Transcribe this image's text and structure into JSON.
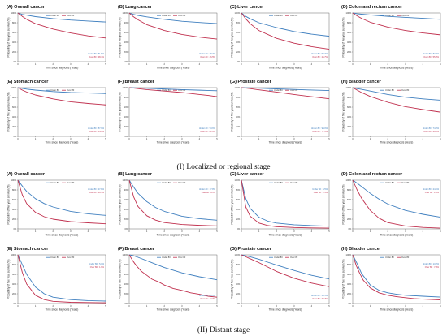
{
  "colors": {
    "under": "#3f7fbf",
    "over": "#c0304e"
  },
  "axis": {
    "xlabel": "Time since diagnosis (Years)",
    "ylabel": "Probability of five year survival (%)",
    "xticks": [
      "0",
      "1",
      "2",
      "3",
      "4",
      "5"
    ],
    "yticks": [
      "0%",
      "20%",
      "40%",
      "60%",
      "80%",
      "100%"
    ]
  },
  "legend": {
    "under": "Under 80",
    "over": "Over 80"
  },
  "captions": [
    "(I) Localized or regional stage",
    "(II) Distant stage"
  ],
  "chart_data": [
    {
      "type": "line",
      "section": "I",
      "title": "(A) Overall cancer",
      "xlabel": "Time since diagnosis (Years)",
      "ylabel": "Probability of five year survival (%)",
      "xlim": [
        0,
        5
      ],
      "ylim": [
        0,
        100
      ],
      "annotations": [
        "Under 80 : 81.5%",
        "Over 80 : 48.7%"
      ],
      "series": [
        {
          "name": "Under 80",
          "x": [
            0,
            0.25,
            0.5,
            1,
            2,
            3,
            4,
            5
          ],
          "values": [
            100,
            97,
            95.5,
            92.5,
            88.5,
            85.5,
            83.5,
            81.5
          ]
        },
        {
          "name": "Over 80",
          "x": [
            0,
            0.25,
            0.5,
            1,
            2,
            3,
            4,
            5
          ],
          "values": [
            100,
            93,
            87,
            78,
            67,
            59,
            53,
            48.7
          ]
        }
      ]
    },
    {
      "type": "line",
      "section": "I",
      "title": "(B) Lung cancer",
      "xlabel": "Time since diagnosis (Years)",
      "ylabel": "Probability of five year survival (%)",
      "xlim": [
        0,
        5
      ],
      "ylim": [
        0,
        100
      ],
      "annotations": [
        "Under 80 : 78.3%",
        "Over 80 : 46.5%"
      ],
      "series": [
        {
          "name": "Under 80",
          "x": [
            0,
            0.25,
            0.5,
            1,
            2,
            3,
            4,
            5
          ],
          "values": [
            100,
            97,
            95,
            92,
            87,
            83,
            80.5,
            78.3
          ]
        },
        {
          "name": "Over 80",
          "x": [
            0,
            0.25,
            0.5,
            1,
            2,
            3,
            4,
            5
          ],
          "values": [
            100,
            92,
            86,
            76,
            64,
            56,
            50.5,
            46.5
          ]
        }
      ]
    },
    {
      "type": "line",
      "section": "I",
      "title": "(C) Liver cancer",
      "xlabel": "Time since diagnosis (Years)",
      "ylabel": "Probability of five year survival (%)",
      "xlim": [
        0,
        5
      ],
      "ylim": [
        0,
        100
      ],
      "annotations": [
        "Under 80 : 52.3%",
        "Over 80 : 25.7%"
      ],
      "series": [
        {
          "name": "Under 80",
          "x": [
            0,
            0.25,
            0.5,
            1,
            2,
            3,
            4,
            5
          ],
          "values": [
            100,
            93,
            88,
            80,
            70,
            62,
            56.5,
            52.3
          ]
        },
        {
          "name": "Over 80",
          "x": [
            0,
            0.25,
            0.5,
            1,
            2,
            3,
            4,
            5
          ],
          "values": [
            100,
            88,
            78,
            64,
            48,
            38,
            31,
            25.7
          ]
        }
      ]
    },
    {
      "type": "line",
      "section": "I",
      "title": "(D) Colon and rectum cancer",
      "xlabel": "Time since diagnosis (Years)",
      "ylabel": "Probability of five year survival (%)",
      "xlim": [
        0,
        5
      ],
      "ylim": [
        0,
        100
      ],
      "annotations": [
        "Under 80 : 87.0%",
        "Over 80 : 55.2%"
      ],
      "series": [
        {
          "name": "Under 80",
          "x": [
            0,
            0.25,
            0.5,
            1,
            2,
            3,
            4,
            5
          ],
          "values": [
            100,
            98.5,
            97.5,
            96,
            93,
            91,
            89,
            87
          ]
        },
        {
          "name": "Over 80",
          "x": [
            0,
            0.25,
            0.5,
            1,
            2,
            3,
            4,
            5
          ],
          "values": [
            100,
            94,
            89,
            81,
            71,
            64,
            59,
            55.2
          ]
        }
      ]
    },
    {
      "type": "line",
      "section": "I",
      "title": "(E) Stomach cancer",
      "xlabel": "Time since diagnosis (Years)",
      "ylabel": "Probability of five year survival (%)",
      "xlim": [
        0,
        5
      ],
      "ylim": [
        0,
        100
      ],
      "annotations": [
        "Under 80 : 87.9%",
        "Over 80 : 64.6%"
      ],
      "series": [
        {
          "name": "Under 80",
          "x": [
            0,
            0.25,
            0.5,
            1,
            2,
            3,
            4,
            5
          ],
          "values": [
            100,
            98.5,
            97,
            95,
            92,
            90,
            89,
            87.9
          ]
        },
        {
          "name": "Over 80",
          "x": [
            0,
            0.25,
            0.5,
            1,
            2,
            3,
            4,
            5
          ],
          "values": [
            100,
            95,
            91,
            85,
            77,
            71,
            67.5,
            64.6
          ]
        }
      ]
    },
    {
      "type": "line",
      "section": "I",
      "title": "(F) Breast cancer",
      "xlabel": "Time since diagnosis (Years)",
      "ylabel": "Probability of five year survival (%)",
      "xlim": [
        0,
        5
      ],
      "ylim": [
        0,
        100
      ],
      "annotations": [
        "Under 80 : 93.6%",
        "Over 80 : 81.6%"
      ],
      "series": [
        {
          "name": "Under 80",
          "x": [
            0,
            0.25,
            0.5,
            1,
            2,
            3,
            4,
            5
          ],
          "values": [
            100,
            99.7,
            99.3,
            98.7,
            97.3,
            96,
            94.8,
            93.6
          ]
        },
        {
          "name": "Over 80",
          "x": [
            0,
            0.25,
            0.5,
            1,
            2,
            3,
            3.5,
            4,
            4.5,
            5
          ],
          "values": [
            100,
            99,
            98,
            96,
            93,
            90,
            88,
            86,
            84,
            81.6
          ]
        }
      ]
    },
    {
      "type": "line",
      "section": "I",
      "title": "(G) Prostate cancer",
      "xlabel": "Time since diagnosis (Years)",
      "ylabel": "Probability of five year survival (%)",
      "xlim": [
        0,
        5
      ],
      "ylim": [
        0,
        100
      ],
      "annotations": [
        "Under 80 : 94.0%",
        "Over 80 : 77.1%"
      ],
      "series": [
        {
          "name": "Under 80",
          "x": [
            0,
            0.25,
            0.5,
            1,
            2,
            3,
            4,
            5
          ],
          "values": [
            100,
            99.7,
            99.4,
            98.8,
            97.5,
            96.3,
            95.1,
            94
          ]
        },
        {
          "name": "Over 80",
          "x": [
            0,
            0.25,
            0.5,
            1,
            2,
            3,
            4,
            5
          ],
          "values": [
            100,
            99,
            98,
            95.5,
            91,
            86,
            81.5,
            77.1
          ]
        }
      ]
    },
    {
      "type": "line",
      "section": "I",
      "title": "(H) Bladder cancer",
      "xlabel": "Time since diagnosis (Years)",
      "ylabel": "Probability of five year survival (%)",
      "xlim": [
        0,
        5
      ],
      "ylim": [
        0,
        100
      ],
      "annotations": [
        "Under 80 : 74.2%",
        "Over 80 : 49.8%"
      ],
      "series": [
        {
          "name": "Under 80",
          "x": [
            0,
            0.25,
            0.5,
            1,
            2,
            3,
            4,
            5
          ],
          "values": [
            100,
            98,
            96.5,
            93,
            86,
            80.5,
            77,
            74.2
          ]
        },
        {
          "name": "Over 80",
          "x": [
            0,
            0.25,
            0.5,
            1,
            2,
            3,
            4,
            5
          ],
          "values": [
            100,
            95,
            90,
            82,
            70,
            61,
            55,
            49.8
          ]
        }
      ]
    },
    {
      "type": "line",
      "section": "II",
      "title": "(A) Overall cancer",
      "xlabel": "Time since diagnosis (Years)",
      "ylabel": "Probability of five year survival (%)",
      "xlim": [
        0,
        5
      ],
      "ylim": [
        0,
        100
      ],
      "annotations": [
        "Under 80 : 27.8%",
        "Over 80 : 10.5%"
      ],
      "series": [
        {
          "name": "Under 80",
          "x": [
            0,
            0.25,
            0.5,
            1,
            1.5,
            2,
            3,
            4,
            5
          ],
          "values": [
            100,
            88,
            77,
            62,
            52,
            45,
            36,
            31,
            27.8
          ]
        },
        {
          "name": "Over 80",
          "x": [
            0,
            0.25,
            0.5,
            1,
            1.5,
            2,
            3,
            4,
            5
          ],
          "values": [
            100,
            70,
            52,
            34,
            25,
            20,
            15,
            12.5,
            10.5
          ]
        }
      ]
    },
    {
      "type": "line",
      "section": "II",
      "title": "(B) Lung cancer",
      "xlabel": "Time since diagnosis (Years)",
      "ylabel": "Probability of five year survival (%)",
      "xlim": [
        0,
        5
      ],
      "ylim": [
        0,
        100
      ],
      "annotations": [
        "Under 80 : 17.8%",
        "Over 80 : 6.1%"
      ],
      "series": [
        {
          "name": "Under 80",
          "x": [
            0,
            0.25,
            0.5,
            1,
            1.5,
            2,
            3,
            4,
            5
          ],
          "values": [
            100,
            86,
            73,
            56,
            44,
            36,
            26,
            21,
            17.8
          ]
        },
        {
          "name": "Over 80",
          "x": [
            0,
            0.25,
            0.5,
            1,
            1.5,
            2,
            3,
            4,
            5
          ],
          "values": [
            100,
            66,
            46,
            27,
            18,
            13,
            9,
            7.3,
            6.1
          ]
        }
      ]
    },
    {
      "type": "line",
      "section": "II",
      "title": "(C) Liver cancer",
      "xlabel": "Time since diagnosis (Years)",
      "ylabel": "Probability of five year survival (%)",
      "xlim": [
        0,
        5
      ],
      "ylim": [
        0,
        100
      ],
      "annotations": [
        "Under 80 : 5.5%",
        "Over 80 : 1.5%"
      ],
      "series": [
        {
          "name": "Under 80",
          "x": [
            0,
            0.25,
            0.5,
            1,
            1.5,
            2,
            3,
            4,
            5
          ],
          "values": [
            100,
            62,
            42,
            24,
            16,
            12,
            8.5,
            6.8,
            5.5
          ]
        },
        {
          "name": "Over 80",
          "x": [
            0,
            0.25,
            0.5,
            1,
            1.5,
            2,
            3,
            4,
            5
          ],
          "values": [
            100,
            45,
            26,
            12,
            7,
            4.5,
            2.8,
            2,
            1.5
          ]
        }
      ]
    },
    {
      "type": "line",
      "section": "II",
      "title": "(D) Colon and rectum cancer",
      "xlabel": "Time since diagnosis (Years)",
      "ylabel": "Probability of five year survival (%)",
      "xlim": [
        0,
        5
      ],
      "ylim": [
        0,
        100
      ],
      "annotations": [
        "Under 80 : 24.1%",
        "Over 80 : 1.6%"
      ],
      "series": [
        {
          "name": "Under 80",
          "x": [
            0,
            0.25,
            0.5,
            1,
            1.5,
            2,
            3,
            4,
            5
          ],
          "values": [
            100,
            94,
            87,
            73,
            61,
            51,
            38,
            30,
            24.1
          ]
        },
        {
          "name": "Over 80",
          "x": [
            0,
            0.25,
            0.5,
            1,
            1.5,
            2,
            3,
            4,
            5
          ],
          "values": [
            100,
            80,
            63,
            38,
            22,
            13,
            6,
            3,
            1.6
          ]
        }
      ]
    },
    {
      "type": "line",
      "section": "II",
      "title": "(E) Stomach cancer",
      "xlabel": "Time since diagnosis (Years)",
      "ylabel": "Probability of five year survival (%)",
      "xlim": [
        0,
        5
      ],
      "ylim": [
        0,
        100
      ],
      "annotations": [
        "Under 80 : 5.0%",
        "Over 80 : 1.6%"
      ],
      "series": [
        {
          "name": "Under 80",
          "x": [
            0,
            0.25,
            0.5,
            1,
            1.5,
            2,
            3,
            4,
            5
          ],
          "values": [
            100,
            80,
            60,
            34,
            20,
            13,
            8,
            6,
            5
          ]
        },
        {
          "name": "Over 80",
          "x": [
            0,
            0.25,
            0.5,
            1,
            1.5,
            2,
            3,
            4,
            5
          ],
          "values": [
            100,
            64,
            40,
            17,
            8,
            4.5,
            2.5,
            2,
            1.6
          ]
        }
      ]
    },
    {
      "type": "line",
      "section": "II",
      "title": "(F) Breast cancer",
      "xlabel": "Time since diagnosis (Years)",
      "ylabel": "Probability of five year survival (%)",
      "xlim": [
        0,
        5
      ],
      "ylim": [
        0,
        100
      ],
      "annotations": [
        "Under 80 : 48.9%",
        "Over 80 : 13.0%"
      ],
      "series": [
        {
          "name": "Under 80",
          "x": [
            0,
            0.25,
            0.5,
            1,
            1.5,
            2,
            3,
            4,
            5
          ],
          "values": [
            100,
            98,
            95,
            88,
            81,
            74,
            63,
            55,
            48.9
          ]
        },
        {
          "name": "Over 80",
          "x": [
            0,
            0.2,
            0.4,
            0.7,
            1,
            1.3,
            1.7,
            2,
            2.5,
            3,
            3.5,
            4,
            4.5,
            5
          ],
          "values": [
            100,
            88,
            78,
            66,
            58,
            50,
            44,
            38,
            31,
            27,
            22,
            19,
            15,
            13
          ]
        }
      ]
    },
    {
      "type": "line",
      "section": "II",
      "title": "(G) Prostate cancer",
      "xlabel": "Time since diagnosis (Years)",
      "ylabel": "Probability of five year survival (%)",
      "xlim": [
        0,
        5
      ],
      "ylim": [
        0,
        100
      ],
      "annotations": [
        "Under 80 : 50.5%",
        "Over 80 : 34.7%"
      ],
      "series": [
        {
          "name": "Under 80",
          "x": [
            0,
            0.25,
            0.5,
            1,
            1.5,
            2,
            3,
            4,
            5
          ],
          "values": [
            100,
            98,
            96,
            91,
            85,
            79,
            68,
            58,
            50.5
          ]
        },
        {
          "name": "Over 80",
          "x": [
            0,
            0.25,
            0.5,
            1,
            1.5,
            2,
            3,
            4,
            5
          ],
          "values": [
            100,
            96,
            92,
            84,
            75,
            66,
            52,
            42,
            34.7
          ]
        }
      ]
    },
    {
      "type": "line",
      "section": "II",
      "title": "(H) Bladder cancer",
      "xlabel": "Time since diagnosis (Years)",
      "ylabel": "Probability of five year survival (%)",
      "xlim": [
        0,
        5
      ],
      "ylim": [
        0,
        100
      ],
      "annotations": [
        "Under 80 : 13.2%",
        "Over 80 : 7.5%"
      ],
      "series": [
        {
          "name": "Under 80",
          "x": [
            0,
            0.25,
            0.5,
            1,
            1.5,
            2,
            2.5,
            3,
            4,
            5
          ],
          "values": [
            100,
            82,
            62,
            38,
            27,
            22,
            19,
            17,
            15,
            13.2
          ]
        },
        {
          "name": "Over 80",
          "x": [
            0,
            0.2,
            0.4,
            0.6,
            0.8,
            1,
            1.5,
            2,
            2.5,
            3,
            3.5,
            4,
            5
          ],
          "values": [
            100,
            78,
            62,
            48,
            40,
            32,
            22,
            17,
            14,
            12,
            10,
            9,
            7.5
          ]
        }
      ]
    }
  ]
}
